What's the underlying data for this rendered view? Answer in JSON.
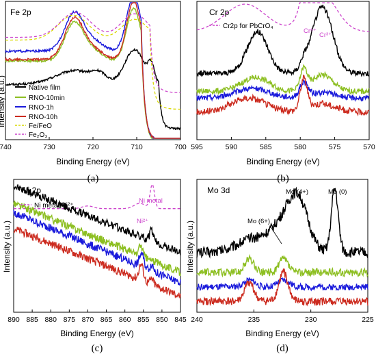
{
  "chart_data": [
    {
      "type": "line",
      "panel_title": "Fe 2p",
      "caption": "(a)",
      "xlabel": "Binding Energy (eV)",
      "ylabel": "Intensity (a.u.)",
      "xlim": [
        740,
        700
      ],
      "x_reversed": true,
      "x_ticks": [
        740,
        730,
        720,
        710,
        700
      ],
      "y_ticks": "none",
      "legend_position": "lower-left",
      "series": [
        {
          "name": "Native film",
          "color": "#000000",
          "dash": false,
          "rel_baseline": 0.4,
          "noise": 0.004,
          "peaks": [
            [
              724,
              4.5,
              0.1
            ],
            [
              718.5,
              1.5,
              0.05
            ],
            [
              710.5,
              2.2,
              0.25
            ],
            [
              706.7,
              0.7,
              0.12
            ]
          ],
          "step": [
            705,
            0.32
          ]
        },
        {
          "name": "RNO-10min",
          "color": "#8dbf22",
          "dash": false,
          "rel_baseline": 0.57,
          "noise": 0.004,
          "peaks": [
            [
              724.2,
              2.2,
              0.28
            ],
            [
              719.5,
              2.0,
              0.06
            ],
            [
              710.7,
              1.6,
              0.38
            ]
          ],
          "step": [
            709,
            0.58
          ]
        },
        {
          "name": "RNO-1h",
          "color": "#1a1adb",
          "dash": false,
          "rel_baseline": 0.64,
          "noise": 0.004,
          "peaks": [
            [
              724.2,
              2.2,
              0.28
            ],
            [
              719.5,
              2.0,
              0.06
            ],
            [
              710.7,
              1.6,
              0.4
            ]
          ],
          "step": [
            709,
            0.64
          ]
        },
        {
          "name": "RNO-10h",
          "color": "#cc2b1f",
          "dash": false,
          "rel_baseline": 0.58,
          "noise": 0.004,
          "peaks": [
            [
              724.2,
              2.2,
              0.3
            ],
            [
              719.5,
              2.0,
              0.06
            ],
            [
              710.7,
              1.6,
              0.42
            ]
          ],
          "step": [
            709,
            0.58
          ]
        },
        {
          "name": "Fe/FeO",
          "color": "#d9d900",
          "dash": true,
          "rel_baseline": 0.72,
          "noise": 0,
          "peaks": [
            [
              724.5,
              3.5,
              0.18
            ],
            [
              710.5,
              3.0,
              0.15
            ]
          ],
          "step": [
            707,
            0.5
          ]
        },
        {
          "name": "Fe₂O₃",
          "color": "#cc44cc",
          "dash": true,
          "rel_baseline": 0.74,
          "noise": 0,
          "peaks": [
            [
              724.0,
              3.5,
              0.18
            ],
            [
              710.5,
              3.0,
              0.17
            ]
          ],
          "step": [
            707,
            0.4
          ]
        }
      ]
    },
    {
      "type": "line",
      "panel_title": "Cr 2p",
      "caption": "(b)",
      "xlabel": "Binding Energy (eV)",
      "ylabel": "",
      "xlim": [
        595,
        570
      ],
      "x_reversed": true,
      "x_ticks": [
        595,
        590,
        585,
        580,
        575,
        570
      ],
      "y_ticks": "none",
      "legend_position": "top",
      "legend_entries": [
        "Cr2p for PbCrO₄"
      ],
      "annotations": [
        {
          "text": "Cr⁶⁺",
          "x": 579,
          "color": "#cc44cc"
        },
        {
          "text": "Cr³⁺",
          "x": 576.7,
          "color": "#cc44cc"
        }
      ],
      "series": [
        {
          "name": "Cr2p for PbCrO₄",
          "color": "#cc44cc",
          "dash": true,
          "rel_baseline": 0.78,
          "noise": 0,
          "peaks": [
            [
              588,
              3.0,
              0.2
            ],
            [
              579,
              0.8,
              0.25
            ],
            [
              577.0,
              2.2,
              0.28
            ]
          ]
        },
        {
          "name": "",
          "color": "#000000",
          "dash": false,
          "rel_baseline": 0.48,
          "noise": 0.01,
          "peaks": [
            [
              586.2,
              1.5,
              0.3
            ],
            [
              576.8,
              1.5,
              0.48
            ],
            [
              579.5,
              0.5,
              0.05
            ]
          ]
        },
        {
          "name": "",
          "color": "#8dbf22",
          "dash": false,
          "rel_baseline": 0.35,
          "noise": 0.01,
          "peaks": [
            [
              586.5,
              2.0,
              0.1
            ],
            [
              579.5,
              0.5,
              0.15
            ],
            [
              576.8,
              1.5,
              0.12
            ]
          ]
        },
        {
          "name": "",
          "color": "#1a1adb",
          "dash": false,
          "rel_baseline": 0.3,
          "noise": 0.01,
          "peaks": [
            [
              587,
              2.5,
              0.07
            ],
            [
              579.5,
              0.6,
              0.1
            ],
            [
              576.8,
              2.0,
              0.04
            ]
          ]
        },
        {
          "name": "",
          "color": "#cc2b1f",
          "dash": false,
          "rel_baseline": 0.2,
          "noise": 0.012,
          "peaks": [
            [
              587.5,
              2.5,
              0.1
            ],
            [
              579.5,
              0.5,
              0.22
            ],
            [
              577,
              2.0,
              0.06
            ]
          ]
        }
      ]
    },
    {
      "type": "line",
      "panel_title": "Ni 2p",
      "caption": "(c)",
      "xlabel": "Binding Energy (eV)",
      "ylabel": "Intensity (a.u.)",
      "xlim": [
        890,
        845
      ],
      "x_reversed": true,
      "x_ticks": [
        890,
        885,
        880,
        875,
        870,
        865,
        860,
        855,
        850,
        845
      ],
      "y_ticks": "none",
      "legend_position": "top",
      "legend_entries": [
        "Ni metal/Ni²⁺"
      ],
      "annotations": [
        {
          "text": "Ni metal",
          "x": 852.6,
          "color": "#cc44cc"
        },
        {
          "text": "Ni²⁺",
          "x": 855.5,
          "color": "#cc44cc"
        }
      ],
      "series": [
        {
          "name": "Ni metal/Ni²⁺",
          "color": "#cc44cc",
          "dash": true,
          "rel_baseline": 0.78,
          "noise": 0,
          "peaks": [
            [
              870,
              1.5,
              0.02
            ],
            [
              856,
              1.5,
              0.04
            ],
            [
              852.6,
              0.6,
              0.18
            ]
          ]
        },
        {
          "name": "",
          "color": "#000000",
          "dash": false,
          "rel_baseline": 0.5,
          "noise": 0.015,
          "slope": [
            0.95,
            0.45
          ],
          "peaks": [
            [
              852.8,
              0.5,
              0.08
            ]
          ]
        },
        {
          "name": "",
          "color": "#8dbf22",
          "dash": false,
          "rel_baseline": 0.42,
          "noise": 0.015,
          "slope": [
            0.82,
            0.3
          ],
          "peaks": [
            [
              855.7,
              0.5,
              0.08
            ]
          ]
        },
        {
          "name": "",
          "color": "#1a1adb",
          "dash": false,
          "rel_baseline": 0.32,
          "noise": 0.015,
          "slope": [
            0.75,
            0.22
          ],
          "peaks": [
            [
              855.5,
              0.6,
              0.1
            ],
            [
              852.7,
              0.5,
              0.05
            ]
          ]
        },
        {
          "name": "",
          "color": "#cc2b1f",
          "dash": false,
          "rel_baseline": 0.22,
          "noise": 0.015,
          "slope": [
            0.63,
            0.12
          ],
          "peaks": [
            [
              855.6,
              0.6,
              0.12
            ],
            [
              852.7,
              0.5,
              0.04
            ]
          ]
        }
      ]
    },
    {
      "type": "line",
      "panel_title": "Mo 3d",
      "caption": "(d)",
      "xlabel": "Binding Energy (eV)",
      "ylabel": "Intensity (a.u.)",
      "xlim": [
        240,
        225
      ],
      "x_reversed": true,
      "x_ticks": [
        240,
        235,
        230,
        225
      ],
      "y_ticks": "none",
      "annotations": [
        {
          "text": "Mo (6+)",
          "x": 233.5,
          "color": "#000000"
        },
        {
          "text": "Mo (4+)",
          "x": 231.8,
          "color": "#000000"
        },
        {
          "text": "Mo (0)",
          "x": 228.0,
          "color": "#000000"
        }
      ],
      "series": [
        {
          "name": "",
          "color": "#000000",
          "dash": false,
          "rel_baseline": 0.45,
          "noise": 0.02,
          "peaks": [
            [
              235,
              1.5,
              0.1
            ],
            [
              232.0,
              1.2,
              0.25
            ],
            [
              231.0,
              0.8,
              0.25
            ],
            [
              227.9,
              0.3,
              0.48
            ]
          ]
        },
        {
          "name": "",
          "color": "#8dbf22",
          "dash": false,
          "rel_baseline": 0.3,
          "noise": 0.015,
          "peaks": [
            [
              235.4,
              0.4,
              0.1
            ],
            [
              232.4,
              0.4,
              0.1
            ]
          ]
        },
        {
          "name": "",
          "color": "#1a1adb",
          "dash": false,
          "rel_baseline": 0.19,
          "noise": 0.012,
          "peaks": [
            [
              235.4,
              0.5,
              0.05
            ],
            [
              232.4,
              0.5,
              0.05
            ]
          ]
        },
        {
          "name": "",
          "color": "#cc2b1f",
          "dash": false,
          "rel_baseline": 0.08,
          "noise": 0.015,
          "peaks": [
            [
              235.4,
              0.4,
              0.14
            ],
            [
              232.4,
              0.4,
              0.22
            ]
          ]
        }
      ]
    }
  ]
}
